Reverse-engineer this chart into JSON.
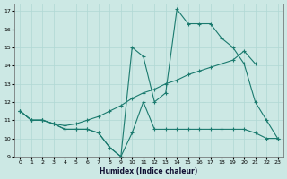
{
  "xlabel": "Humidex (Indice chaleur)",
  "xlim": [
    -0.5,
    23.5
  ],
  "ylim": [
    9,
    17.4
  ],
  "xticks": [
    0,
    1,
    2,
    3,
    4,
    5,
    6,
    7,
    8,
    9,
    10,
    11,
    12,
    13,
    14,
    15,
    16,
    17,
    18,
    19,
    20,
    21,
    22,
    23
  ],
  "yticks": [
    9,
    10,
    11,
    12,
    13,
    14,
    15,
    16,
    17
  ],
  "bg_color": "#cce8e4",
  "line_color": "#1a7a6e",
  "line1_x": [
    0,
    1,
    2,
    3,
    4,
    5,
    6,
    7,
    8,
    9,
    10,
    11,
    12,
    13,
    14,
    15,
    16,
    17,
    18,
    19,
    20,
    21,
    22,
    23
  ],
  "line1_y": [
    11.5,
    11,
    11,
    10.8,
    10.5,
    10.5,
    10.5,
    10.3,
    9.5,
    9.0,
    15.0,
    14.5,
    12.0,
    12.5,
    17.1,
    16.3,
    16.3,
    16.3,
    15.5,
    15.0,
    14.1,
    12.0,
    11.0,
    10.0
  ],
  "line2_x": [
    0,
    1,
    2,
    3,
    4,
    5,
    6,
    7,
    8,
    9,
    10,
    11,
    12,
    13,
    14,
    15,
    16,
    17,
    18,
    19,
    20,
    21
  ],
  "line2_y": [
    11.5,
    11.0,
    11.0,
    10.8,
    10.7,
    10.8,
    11.0,
    11.2,
    11.5,
    11.8,
    12.2,
    12.5,
    12.7,
    13.0,
    13.2,
    13.5,
    13.7,
    13.9,
    14.1,
    14.3,
    14.8,
    14.1
  ],
  "line3_x": [
    0,
    1,
    2,
    3,
    4,
    5,
    6,
    7,
    8,
    9,
    10,
    11,
    12,
    13,
    14,
    15,
    16,
    17,
    18,
    19,
    20,
    21,
    22,
    23
  ],
  "line3_y": [
    11.5,
    11.0,
    11.0,
    10.8,
    10.5,
    10.5,
    10.5,
    10.3,
    9.5,
    9.0,
    10.3,
    12.0,
    10.5,
    10.5,
    10.5,
    10.5,
    10.5,
    10.5,
    10.5,
    10.5,
    10.5,
    10.3,
    10.0,
    10.0
  ]
}
